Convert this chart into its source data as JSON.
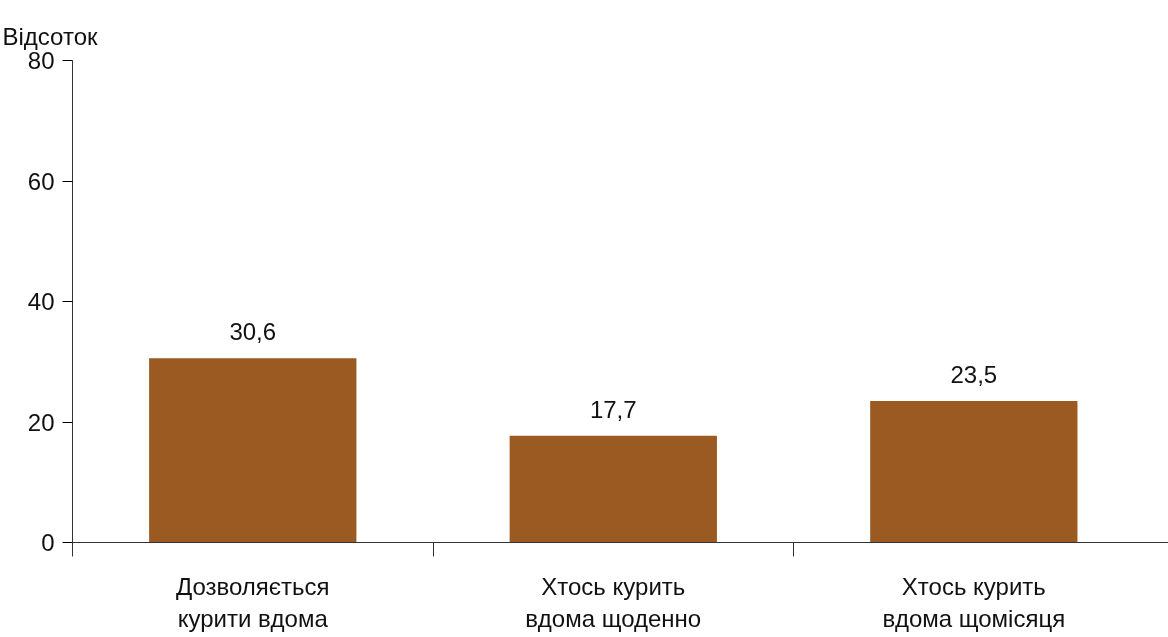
{
  "chart_data": {
    "type": "bar",
    "ylabel": "Відсоток",
    "categories": [
      "Дозволяється курити вдома",
      "Хтось курить вдома щоденно",
      "Хтось курить вдома щомісяця"
    ],
    "values": [
      30.6,
      17.7,
      23.5
    ],
    "color": "#9a5a22",
    "value_labels": [
      "30,6",
      "17,7",
      "23,5"
    ],
    "ylim": [
      0,
      80
    ],
    "yticks": [
      0,
      20,
      40,
      60,
      80
    ],
    "grid": false
  }
}
